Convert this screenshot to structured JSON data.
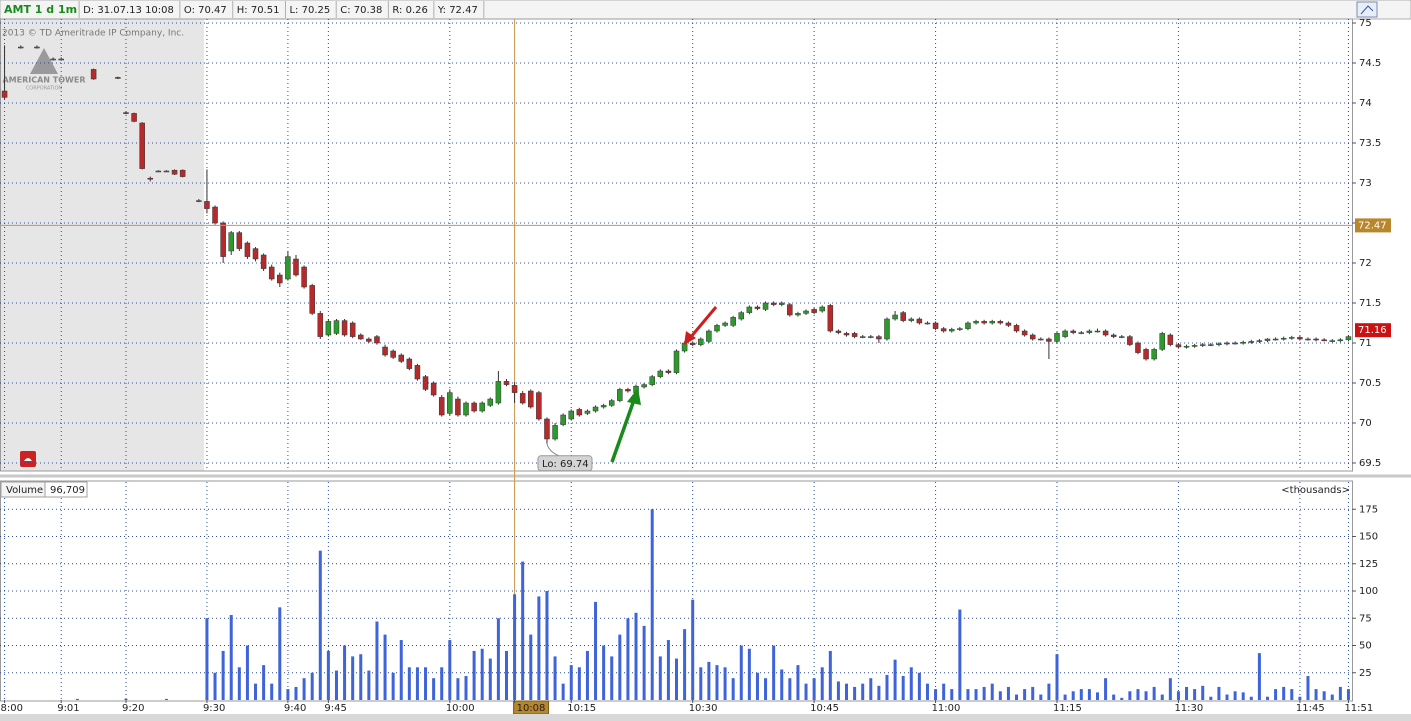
{
  "header": {
    "symbol": "AMT 1 d 1m",
    "fields": [
      "D: 31.07.13 10:08",
      "O: 70.47",
      "H: 70.51",
      "L: 70.25",
      "C: 70.38",
      "R: 0.26",
      "Y: 72.47"
    ]
  },
  "watermark": {
    "copyright": "2013 © TD Ameritrade IP Company, Inc.",
    "logo": "AMERICAN TOWER",
    "logo_sub": "CORPORATION"
  },
  "chart_data": [
    {
      "type": "candlestick",
      "up_color": "#2e9a2e",
      "down_color": "#b52a2a",
      "ylim": [
        69.4,
        75.05
      ],
      "yticks": [
        69.5,
        70,
        70.5,
        71,
        71.5,
        72,
        72.5,
        73,
        73.5,
        74,
        74.5,
        75
      ],
      "grid": true,
      "price_markers": [
        {
          "value": 72.47,
          "color": "#b8862b",
          "crosshair": true
        },
        {
          "value": 71.16,
          "color": "#cc1111"
        }
      ],
      "annotation": {
        "text": "Lo: 69.74",
        "x": 67,
        "y": 69.74
      },
      "open": [
        74.15,
        null,
        74.7,
        null,
        74.7,
        null,
        74.55,
        74.55,
        null,
        null,
        null,
        74.42,
        null,
        null,
        74.32,
        73.88,
        73.87,
        73.75,
        73.06,
        73.15,
        73.15,
        73.16,
        73.16,
        null,
        72.78,
        72.77,
        72.7,
        72.5,
        72.15,
        72.38,
        72.25,
        72.18,
        72.1,
        71.95,
        71.85,
        71.8,
        72.05,
        71.95,
        71.72,
        71.37,
        71.1,
        71.12,
        71.28,
        71.25,
        71.1,
        71.05,
        71.08,
        70.95,
        70.9,
        70.85,
        70.8,
        70.72,
        70.58,
        70.5,
        70.32,
        70.12,
        70.3,
        70.1,
        70.25,
        70.15,
        70.22,
        70.25,
        70.52,
        70.47,
        70.37,
        70.4,
        70.38,
        70.05,
        69.8,
        69.98,
        70.05,
        70.17,
        70.12,
        70.15,
        70.2,
        70.22,
        70.28,
        70.42,
        70.38,
        70.45,
        70.48,
        70.58,
        70.65,
        70.63,
        70.9,
        71.0,
        70.98,
        71.02,
        71.15,
        71.22,
        71.22,
        71.3,
        71.38,
        71.45,
        71.42,
        71.5,
        71.48,
        71.48,
        71.35,
        71.37,
        71.42,
        71.4,
        71.47,
        71.15,
        71.12,
        71.12,
        71.08,
        71.08,
        71.08,
        71.05,
        71.3,
        71.38,
        71.28,
        71.3,
        71.25,
        71.25,
        71.18,
        71.15,
        71.17,
        71.18,
        71.25,
        71.27,
        71.25,
        71.27,
        71.25,
        71.22,
        71.15,
        71.1,
        71.05,
        71.05,
        71.02,
        71.08,
        71.15,
        71.13,
        71.13,
        71.15,
        71.15,
        71.1,
        71.08,
        71.08,
        71.0,
        70.92,
        70.8,
        70.92,
        71.1,
        70.98,
        70.95,
        70.96,
        70.97,
        70.98,
        70.98,
        70.99,
        71.0,
        71.0,
        71.01,
        71.02,
        71.03,
        71.05,
        71.05,
        71.06,
        71.07,
        71.05,
        71.05,
        71.04,
        71.03,
        71.03,
        71.04
      ],
      "high": [
        74.72,
        null,
        74.72,
        null,
        74.72,
        null,
        74.57,
        74.57,
        null,
        null,
        null,
        74.43,
        null,
        null,
        74.33,
        73.9,
        73.88,
        73.76,
        73.08,
        73.16,
        73.16,
        73.17,
        73.17,
        null,
        72.8,
        73.17,
        72.72,
        72.52,
        72.4,
        72.4,
        72.27,
        72.2,
        72.12,
        71.98,
        71.88,
        72.15,
        72.1,
        71.97,
        71.74,
        71.4,
        71.3,
        71.3,
        71.3,
        71.27,
        71.12,
        71.07,
        71.1,
        70.98,
        70.92,
        70.87,
        70.82,
        70.74,
        70.6,
        70.52,
        70.35,
        70.42,
        70.33,
        70.27,
        70.27,
        70.27,
        70.32,
        70.65,
        70.55,
        70.51,
        70.4,
        70.42,
        70.4,
        70.07,
        70.0,
        70.12,
        70.17,
        70.19,
        70.17,
        70.22,
        70.24,
        70.3,
        70.44,
        70.44,
        70.48,
        70.5,
        70.6,
        70.67,
        70.67,
        70.92,
        71.02,
        71.02,
        71.07,
        71.17,
        71.24,
        71.27,
        71.34,
        71.4,
        71.47,
        71.47,
        71.52,
        71.52,
        71.52,
        71.5,
        71.39,
        71.42,
        71.44,
        71.47,
        71.49,
        71.17,
        71.14,
        71.14,
        71.1,
        71.1,
        71.1,
        71.32,
        71.4,
        71.4,
        71.32,
        71.32,
        71.27,
        71.27,
        71.2,
        71.19,
        71.2,
        71.27,
        71.29,
        71.29,
        71.29,
        71.29,
        71.27,
        71.24,
        71.17,
        71.12,
        71.07,
        71.07,
        71.14,
        71.17,
        71.17,
        71.15,
        71.17,
        71.18,
        71.17,
        71.12,
        71.1,
        71.1,
        71.02,
        70.94,
        70.94,
        71.14,
        71.12,
        71.0,
        70.98,
        70.99,
        71.0,
        71.0,
        71.01,
        71.02,
        71.02,
        71.03,
        71.04,
        71.05,
        71.06,
        71.07,
        71.08,
        71.09,
        71.09,
        71.07,
        71.07,
        71.06,
        71.05,
        71.06,
        71.1
      ],
      "low": [
        74.05,
        null,
        74.68,
        null,
        74.68,
        null,
        74.53,
        74.53,
        null,
        null,
        null,
        74.29,
        null,
        null,
        74.3,
        73.86,
        73.76,
        73.17,
        73.02,
        73.14,
        73.14,
        73.1,
        73.07,
        null,
        72.76,
        72.62,
        72.48,
        72.0,
        72.1,
        72.15,
        72.05,
        72.02,
        71.9,
        71.78,
        71.7,
        71.78,
        71.83,
        71.68,
        71.35,
        71.05,
        71.08,
        71.1,
        71.08,
        71.06,
        71.04,
        71.0,
        70.98,
        70.83,
        70.8,
        70.75,
        70.66,
        70.53,
        70.4,
        70.33,
        70.08,
        70.1,
        70.08,
        70.08,
        70.13,
        70.13,
        70.2,
        70.23,
        70.46,
        70.25,
        70.23,
        70.18,
        70.03,
        69.74,
        69.78,
        69.96,
        70.03,
        70.08,
        70.1,
        70.13,
        70.18,
        70.2,
        70.26,
        70.38,
        70.36,
        70.43,
        70.46,
        70.56,
        70.61,
        70.61,
        70.88,
        70.96,
        70.96,
        71.0,
        71.13,
        71.2,
        71.2,
        71.28,
        71.36,
        71.41,
        71.4,
        71.46,
        71.46,
        71.33,
        71.33,
        71.35,
        71.36,
        71.38,
        71.13,
        71.11,
        71.08,
        71.06,
        71.06,
        71.06,
        71.0,
        71.03,
        71.28,
        71.26,
        71.26,
        71.23,
        71.23,
        71.16,
        71.13,
        71.13,
        71.15,
        71.16,
        71.23,
        71.23,
        71.23,
        71.23,
        71.2,
        71.13,
        71.08,
        71.03,
        71.03,
        70.8,
        71.0,
        71.06,
        71.11,
        71.11,
        71.11,
        71.13,
        71.08,
        71.06,
        71.06,
        70.96,
        70.86,
        70.78,
        70.78,
        70.9,
        70.96,
        70.93,
        70.93,
        70.94,
        70.95,
        70.96,
        70.96,
        70.97,
        70.98,
        70.98,
        70.99,
        71.0,
        71.01,
        71.03,
        71.03,
        71.04,
        71.03,
        71.03,
        71.02,
        71.02,
        71.01,
        71.01,
        71.02
      ],
      "close": [
        74.07,
        null,
        74.7,
        null,
        74.7,
        null,
        74.55,
        74.55,
        null,
        null,
        null,
        74.3,
        null,
        null,
        74.31,
        73.87,
        73.77,
        73.18,
        73.05,
        73.15,
        73.15,
        73.11,
        73.08,
        null,
        72.78,
        72.68,
        72.5,
        72.08,
        72.38,
        72.18,
        72.08,
        72.05,
        71.93,
        71.8,
        71.75,
        72.08,
        71.85,
        71.7,
        71.37,
        71.08,
        71.27,
        71.28,
        71.1,
        71.08,
        71.05,
        71.02,
        71.0,
        70.85,
        70.82,
        70.77,
        70.68,
        70.55,
        70.42,
        70.35,
        70.1,
        70.38,
        70.1,
        70.25,
        70.15,
        70.25,
        70.3,
        70.52,
        70.48,
        70.38,
        70.25,
        70.2,
        70.05,
        69.8,
        69.97,
        70.1,
        70.15,
        70.1,
        70.15,
        70.2,
        70.22,
        70.28,
        70.42,
        70.4,
        70.46,
        70.48,
        70.58,
        70.65,
        70.63,
        70.9,
        71.0,
        70.98,
        71.05,
        71.15,
        71.22,
        71.25,
        71.32,
        71.38,
        71.45,
        71.43,
        71.5,
        71.48,
        71.5,
        71.35,
        71.37,
        71.4,
        71.38,
        71.45,
        71.15,
        71.13,
        71.1,
        71.08,
        71.08,
        71.08,
        71.05,
        71.3,
        71.35,
        71.28,
        71.3,
        71.25,
        71.25,
        71.18,
        71.15,
        71.17,
        71.18,
        71.25,
        71.27,
        71.25,
        71.27,
        71.25,
        71.22,
        71.15,
        71.1,
        71.05,
        71.05,
        71.02,
        71.12,
        71.15,
        71.13,
        71.13,
        71.15,
        71.15,
        71.1,
        71.08,
        71.08,
        70.98,
        70.88,
        70.8,
        70.92,
        71.12,
        70.98,
        70.95,
        70.96,
        70.97,
        70.98,
        70.98,
        70.99,
        71.0,
        71.0,
        71.01,
        71.02,
        71.03,
        71.05,
        71.05,
        71.06,
        71.07,
        71.05,
        71.05,
        71.04,
        71.03,
        71.03,
        71.04,
        71.08
      ]
    },
    {
      "type": "bar",
      "title": "Volume",
      "readout": "96,709",
      "units": "<thousands>",
      "color": "#3f63d8",
      "ylim": [
        0,
        200
      ],
      "yticks": [
        25,
        50,
        75,
        100,
        125,
        150,
        175
      ],
      "grid": true,
      "xlim": [
        -0.5,
        166.5
      ],
      "xticks": [
        {
          "value": 0,
          "label": "8:00"
        },
        {
          "value": 7,
          "label": "9:01"
        },
        {
          "value": 15,
          "label": "9:20"
        },
        {
          "value": 25,
          "label": "9:30"
        },
        {
          "value": 35,
          "label": "9:40"
        },
        {
          "value": 40,
          "label": "9:45"
        },
        {
          "value": 55,
          "label": "10:00"
        },
        {
          "value": 63,
          "label": "10:08",
          "highlight": true
        },
        {
          "value": 70,
          "label": "10:15"
        },
        {
          "value": 85,
          "label": "10:30"
        },
        {
          "value": 100,
          "label": "10:45"
        },
        {
          "value": 115,
          "label": "11:00"
        },
        {
          "value": 130,
          "label": "11:15"
        },
        {
          "value": 145,
          "label": "11:30"
        },
        {
          "value": 160,
          "label": "11:45"
        },
        {
          "value": 166,
          "label": "11:51"
        }
      ],
      "values": [
        null,
        null,
        null,
        null,
        null,
        null,
        null,
        null,
        null,
        1,
        null,
        null,
        null,
        null,
        null,
        1,
        null,
        null,
        null,
        null,
        1,
        null,
        null,
        null,
        null,
        75,
        25,
        45,
        78,
        30,
        50,
        15,
        32,
        15,
        85,
        10,
        12,
        20,
        25,
        137,
        45,
        27,
        50,
        40,
        42,
        27,
        72,
        60,
        25,
        55,
        30,
        30,
        30,
        20,
        30,
        55,
        20,
        22,
        45,
        47,
        38,
        75,
        45,
        97,
        127,
        60,
        95,
        100,
        40,
        15,
        32,
        30,
        45,
        90,
        50,
        40,
        60,
        75,
        80,
        68,
        175,
        40,
        55,
        38,
        65,
        92,
        30,
        35,
        32,
        30,
        20,
        50,
        47,
        25,
        20,
        50,
        28,
        20,
        32,
        15,
        20,
        30,
        45,
        17,
        15,
        12,
        15,
        20,
        13,
        23,
        37,
        22,
        30,
        25,
        15,
        10,
        15,
        10,
        83,
        10,
        10,
        12,
        15,
        8,
        12,
        5,
        10,
        12,
        5,
        15,
        42,
        5,
        8,
        10,
        10,
        7,
        20,
        5,
        2,
        8,
        10,
        8,
        12,
        5,
        20,
        8,
        12,
        10,
        13,
        3,
        12,
        5,
        8,
        7,
        3,
        43,
        3,
        10,
        12,
        10,
        3,
        22,
        10,
        8,
        5,
        12,
        10
      ]
    }
  ]
}
